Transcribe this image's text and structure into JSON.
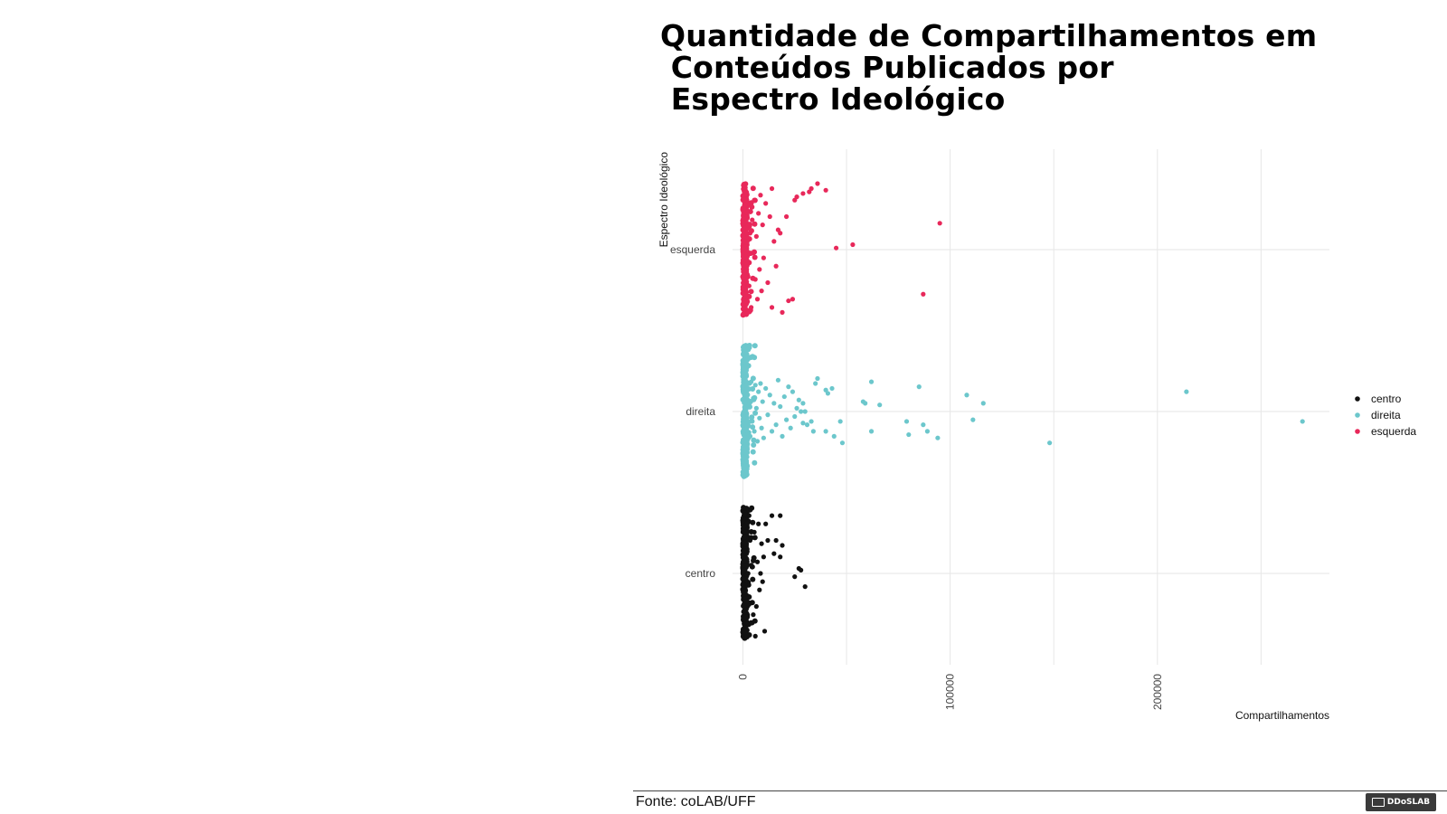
{
  "title_lines": [
    "Quantidade de Compartilhamentos em",
    " Conteúdos Publicados por",
    " Espectro Ideológico"
  ],
  "source": "Fonte: coLAB/UFF",
  "brand": "DDoSLAB",
  "colors": {
    "centro": "#111111",
    "direita": "#6cc7cc",
    "esquerda": "#e8285a",
    "grid": "#e6e6e6"
  },
  "chart_data": {
    "type": "scatter",
    "title": "Quantidade de Compartilhamentos em Conteúdos Publicados por Espectro Ideológico",
    "xlabel": "Compartilhamentos",
    "ylabel": "Espectro Ideológico",
    "categories": [
      "centro",
      "direita",
      "esquerda"
    ],
    "xlim": [
      -5000,
      283000
    ],
    "xticks": [
      0,
      100000,
      200000
    ],
    "xtick_labels": [
      "0",
      "100000",
      "200000"
    ],
    "jitter": 0.4,
    "legend_position": "right",
    "grid": true,
    "series": [
      {
        "name": "centro",
        "points": [
          [
            3000,
            0.35
          ],
          [
            3500,
            0.2
          ],
          [
            4000,
            0.05
          ],
          [
            5000,
            -0.25
          ],
          [
            6000,
            -0.38
          ],
          [
            7500,
            0.3
          ],
          [
            8000,
            -0.1
          ],
          [
            9000,
            0.18
          ],
          [
            10000,
            0.1
          ],
          [
            10500,
            -0.35
          ],
          [
            11000,
            0.3
          ],
          [
            12000,
            0.2
          ],
          [
            14000,
            0.35
          ],
          [
            15000,
            0.12
          ],
          [
            16000,
            0.2
          ],
          [
            18000,
            0.35
          ],
          [
            18000,
            0.1
          ],
          [
            19000,
            0.17
          ],
          [
            27000,
            0.03
          ],
          [
            28000,
            0.02
          ],
          [
            25000,
            -0.02
          ],
          [
            30000,
            -0.08
          ],
          [
            8500,
            0.0
          ],
          [
            9500,
            -0.05
          ],
          [
            7000,
            0.07
          ],
          [
            6500,
            -0.2
          ],
          [
            5500,
            0.25
          ],
          [
            4500,
            -0.3
          ],
          [
            2500,
            0.0
          ]
        ]
      },
      {
        "name": "direita",
        "points": [
          [
            214000,
            0.12
          ],
          [
            270000,
            -0.06
          ],
          [
            148000,
            -0.19
          ],
          [
            116000,
            0.05
          ],
          [
            111000,
            -0.05
          ],
          [
            108000,
            0.1
          ],
          [
            94000,
            -0.16
          ],
          [
            89000,
            -0.12
          ],
          [
            87000,
            -0.08
          ],
          [
            85000,
            0.15
          ],
          [
            80000,
            -0.14
          ],
          [
            79000,
            -0.06
          ],
          [
            66000,
            0.04
          ],
          [
            62000,
            -0.12
          ],
          [
            62000,
            0.18
          ],
          [
            59000,
            0.05
          ],
          [
            58000,
            0.06
          ],
          [
            48000,
            -0.19
          ],
          [
            47000,
            -0.06
          ],
          [
            44000,
            -0.15
          ],
          [
            43000,
            0.14
          ],
          [
            41000,
            0.11
          ],
          [
            40000,
            0.13
          ],
          [
            40000,
            -0.12
          ],
          [
            36000,
            0.2
          ],
          [
            35000,
            0.17
          ],
          [
            34000,
            -0.12
          ],
          [
            33000,
            -0.06
          ],
          [
            31000,
            -0.08
          ],
          [
            30000,
            0.0
          ],
          [
            29000,
            0.05
          ],
          [
            29000,
            -0.07
          ],
          [
            28000,
            0.0
          ],
          [
            27000,
            0.07
          ],
          [
            26000,
            0.02
          ],
          [
            25000,
            -0.03
          ],
          [
            24000,
            0.12
          ],
          [
            23000,
            -0.1
          ],
          [
            22000,
            0.15
          ],
          [
            21000,
            -0.05
          ],
          [
            20000,
            0.09
          ],
          [
            19000,
            -0.15
          ],
          [
            18000,
            0.03
          ],
          [
            17000,
            0.19
          ],
          [
            16000,
            -0.08
          ],
          [
            15000,
            0.05
          ],
          [
            14000,
            -0.12
          ],
          [
            13000,
            0.1
          ],
          [
            12000,
            -0.02
          ],
          [
            11000,
            0.14
          ],
          [
            10000,
            -0.16
          ],
          [
            9500,
            0.06
          ],
          [
            9000,
            -0.1
          ],
          [
            8500,
            0.17
          ],
          [
            8000,
            -0.04
          ],
          [
            7500,
            0.12
          ],
          [
            7000,
            -0.18
          ],
          [
            6500,
            0.02
          ],
          [
            6000,
            0.16
          ],
          [
            5500,
            -0.12
          ],
          [
            5000,
            0.08
          ],
          [
            4500,
            -0.06
          ],
          [
            4000,
            0.18
          ],
          [
            3500,
            -0.15
          ],
          [
            3000,
            0.04
          ]
        ]
      },
      {
        "name": "esquerda",
        "points": [
          [
            95000,
            0.16
          ],
          [
            87000,
            -0.27
          ],
          [
            53000,
            0.03
          ],
          [
            45000,
            0.01
          ],
          [
            40000,
            0.36
          ],
          [
            36000,
            0.4
          ],
          [
            33000,
            0.37
          ],
          [
            32000,
            0.35
          ],
          [
            29000,
            0.34
          ],
          [
            26000,
            0.32
          ],
          [
            25000,
            0.3
          ],
          [
            24000,
            -0.3
          ],
          [
            22000,
            -0.31
          ],
          [
            21000,
            0.2
          ],
          [
            19000,
            -0.38
          ],
          [
            18000,
            0.1
          ],
          [
            17000,
            0.12
          ],
          [
            16000,
            -0.1
          ],
          [
            15000,
            0.05
          ],
          [
            14000,
            0.37
          ],
          [
            14000,
            -0.35
          ],
          [
            13000,
            0.2
          ],
          [
            12000,
            -0.2
          ],
          [
            11000,
            0.28
          ],
          [
            10000,
            -0.05
          ],
          [
            9500,
            0.15
          ],
          [
            9000,
            -0.25
          ],
          [
            8500,
            0.33
          ],
          [
            8000,
            -0.12
          ],
          [
            7500,
            0.22
          ],
          [
            7000,
            -0.3
          ],
          [
            6500,
            0.08
          ],
          [
            6000,
            -0.18
          ],
          [
            5500,
            0.3
          ],
          [
            5000,
            -0.02
          ],
          [
            4500,
            0.18
          ],
          [
            4000,
            -0.35
          ],
          [
            3500,
            0.1
          ],
          [
            3000,
            -0.22
          ]
        ]
      }
    ],
    "dense_band": {
      "description": "",
      "max_value": 2000
    }
  }
}
